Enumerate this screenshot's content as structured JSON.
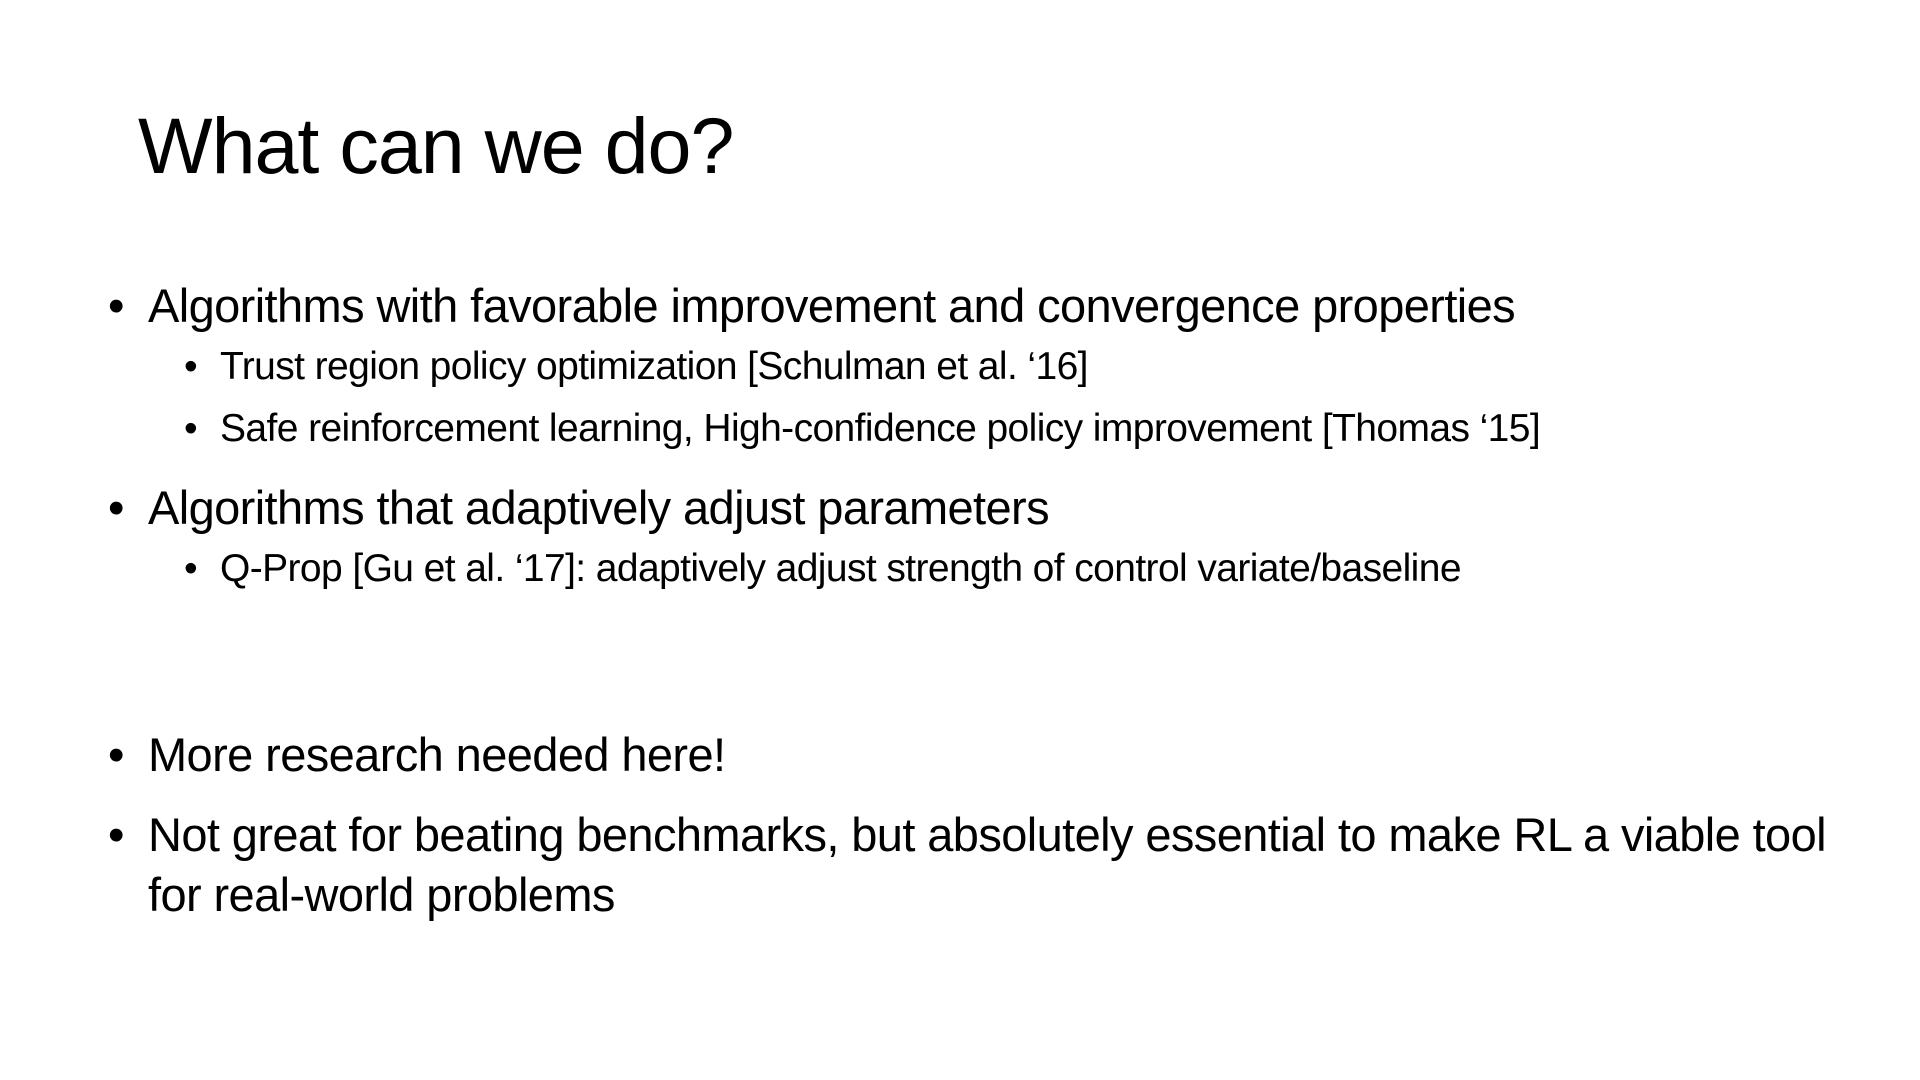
{
  "slide": {
    "title": "What can we do?",
    "bullet_glyph": "•",
    "bullets": [
      {
        "text": "Algorithms with favorable improvement and convergence properties",
        "sub": [
          "Trust region policy optimization [Schulman et al. ‘16]",
          "Safe reinforcement learning, High-confidence policy improvement [Thomas ‘15]"
        ]
      },
      {
        "text": "Algorithms that adaptively adjust parameters",
        "sub": [
          "Q-Prop [Gu et al. ‘17]: adaptively adjust strength of control variate/baseline"
        ]
      },
      {
        "text": "More research needed here!"
      },
      {
        "text": "Not great for beating benchmarks, but absolutely essential to make RL a viable tool for real-world problems"
      }
    ]
  }
}
